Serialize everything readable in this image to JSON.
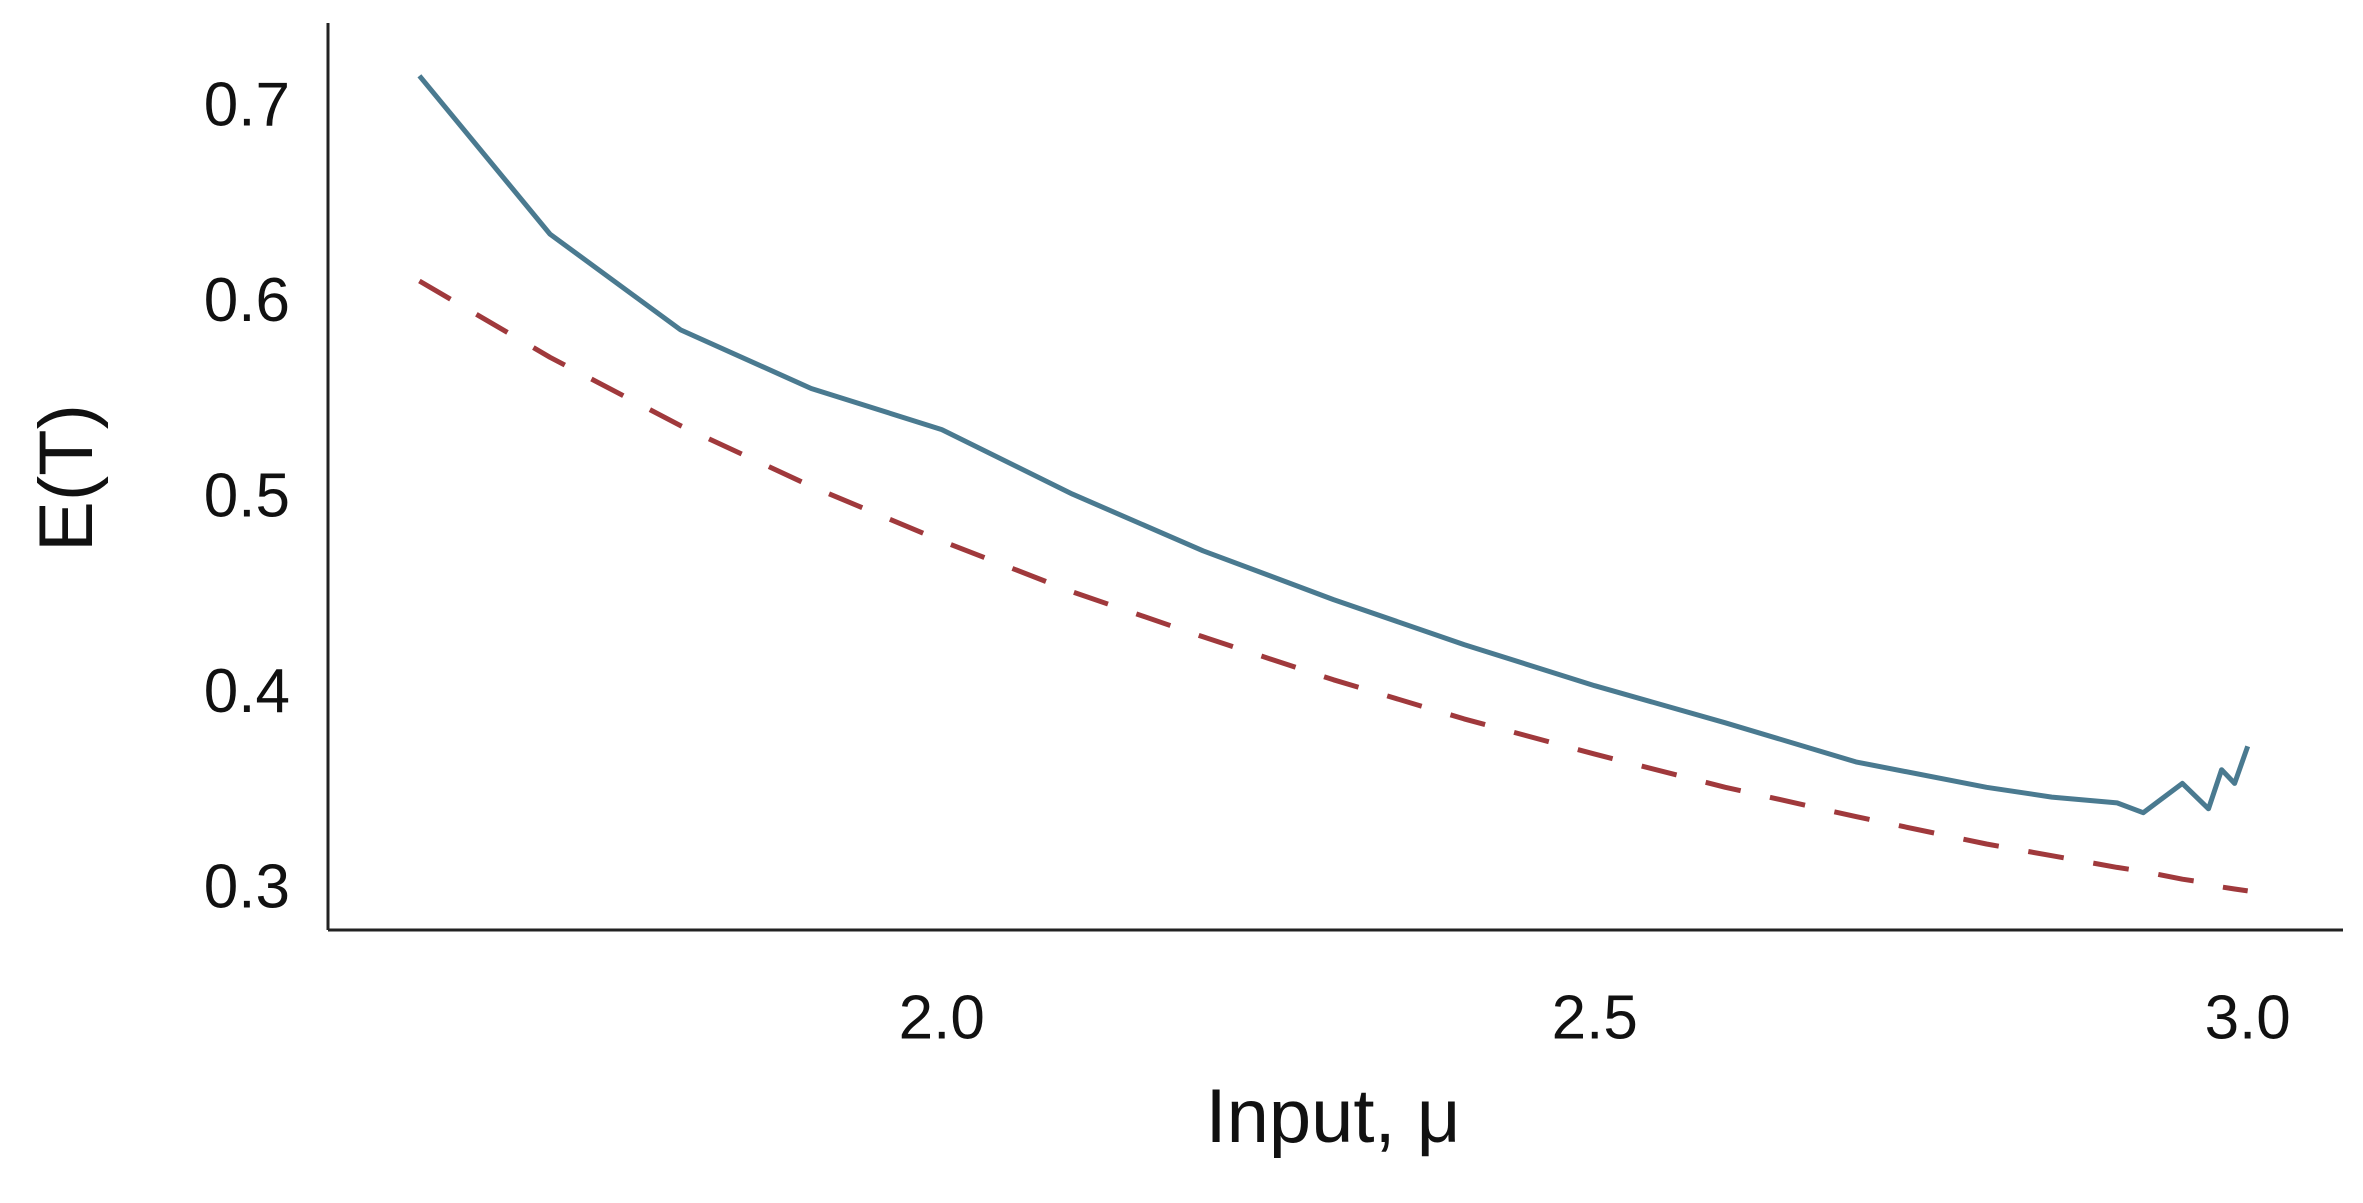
{
  "chart_data": {
    "type": "line",
    "x_label": "Input, μ",
    "y_label": "E(T)",
    "x": [
      1.6,
      1.7,
      1.8,
      1.9,
      2.0,
      2.1,
      2.2,
      2.3,
      2.4,
      2.5,
      2.6,
      2.7,
      2.8,
      2.85,
      2.9,
      2.92,
      2.95,
      2.97,
      2.98,
      2.99,
      3.0
    ],
    "series": [
      {
        "color": "#4a7a90",
        "style": "solid",
        "values": [
          0.717,
          0.636,
          0.587,
          0.557,
          0.536,
          0.503,
          0.474,
          0.449,
          0.426,
          0.405,
          0.386,
          0.366,
          0.353,
          0.348,
          0.345,
          0.34,
          0.355,
          0.342,
          0.362,
          0.355,
          0.374
        ]
      },
      {
        "color": "#a0393c",
        "style": "dashed",
        "values": [
          0.612,
          0.573,
          0.538,
          0.507,
          0.479,
          0.453,
          0.43,
          0.408,
          0.388,
          0.37,
          0.353,
          0.338,
          0.324,
          0.318,
          0.312,
          0.31,
          0.306,
          0.304,
          0.302,
          0.301,
          0.3
        ]
      }
    ],
    "xlim": [
      1.53,
      3.073
    ],
    "ylim": [
      0.28,
      0.744
    ],
    "xticks": [
      {
        "value": 2.0,
        "label": "2.0"
      },
      2.5,
      {
        "value": 3.0,
        "label": "3.0"
      }
    ],
    "yticks": [
      0.3,
      0.4,
      0.5,
      0.6,
      0.7
    ],
    "grid": false
  }
}
